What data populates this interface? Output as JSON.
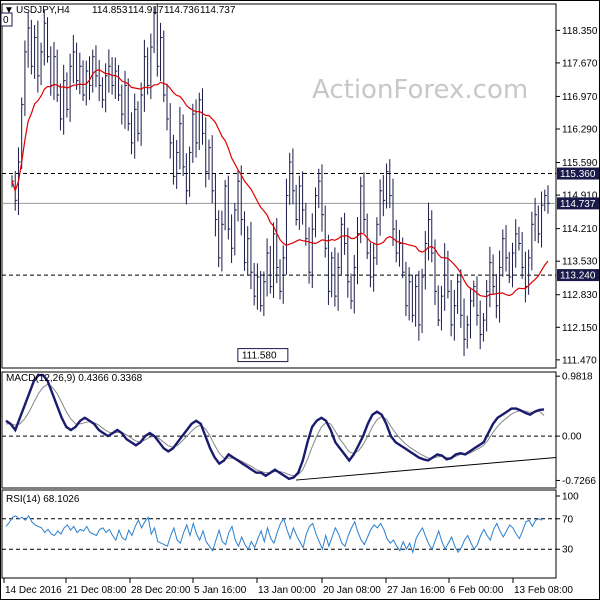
{
  "header": {
    "collapse_glyph": "▼",
    "symbol": "USDJPY,H4",
    "open": "114.853",
    "high": "114.917",
    "low": "114.736",
    "close": "114.737",
    "left_edge_tag": "0"
  },
  "watermark": "ActionForex.com",
  "colors": {
    "price": "#1a1a4a",
    "ma": "#e00000",
    "macd_line": "#1a1a6e",
    "signal_line": "#888888",
    "rsi": "#2a7fd0",
    "badge_bg": "#1a1a4a",
    "badge_text": "#ffffff",
    "grid_dash": "#000000"
  },
  "chart_data": [
    {
      "type": "candlestick",
      "panel": "price",
      "ylim": [
        111.3,
        118.9
      ],
      "y_ticks": [
        "118.350",
        "117.670",
        "116.970",
        "116.290",
        "115.590",
        "114.910",
        "114.210",
        "113.530",
        "112.830",
        "112.150",
        "111.470"
      ],
      "x_ticks": [
        "14 Dec 2016",
        "21 Dec 08:00",
        "28 Dec 20:00",
        "5 Jan 16:00",
        "13 Jan 00:00",
        "20 Jan 08:00",
        "27 Jan 16:00",
        "6 Feb 00:00",
        "13 Feb 08:00"
      ],
      "hlines": [
        {
          "value": 115.36,
          "label": "115.360",
          "dashed": true
        },
        {
          "value": 113.24,
          "label": "113.240",
          "dashed": true
        },
        {
          "value": 114.737,
          "label": "114.737",
          "dashed": false,
          "solid_gray": true
        }
      ],
      "low_annotation": {
        "value": 111.58,
        "label": "111.580",
        "x_index": 78
      },
      "closes": [
        115.2,
        114.8,
        115.6,
        116.8,
        117.9,
        118.4,
        117.6,
        118.2,
        117.4,
        117.9,
        118.5,
        117.8,
        117.2,
        117.8,
        117.0,
        116.5,
        117.3,
        116.7,
        117.6,
        117.9,
        117.3,
        117.6,
        117.0,
        117.5,
        117.2,
        117.8,
        117.4,
        117.2,
        116.9,
        117.4,
        117.6,
        117.2,
        117.5,
        117.0,
        116.6,
        117.2,
        116.4,
        116.0,
        116.7,
        116.2,
        117.0,
        117.8,
        117.2,
        118.0,
        118.7,
        117.6,
        118.2,
        117.0,
        116.5,
        116.0,
        115.3,
        115.8,
        116.4,
        115.5,
        115.0,
        115.8,
        116.6,
        116.0,
        116.9,
        116.2,
        115.4,
        115.9,
        115.0,
        114.4,
        113.6,
        114.3,
        115.1,
        114.2,
        113.8,
        114.6,
        115.2,
        114.4,
        113.5,
        114.0,
        113.3,
        112.8,
        113.2,
        112.6,
        113.1,
        113.7,
        113.0,
        114.1,
        113.4,
        112.9,
        113.6,
        114.9,
        115.6,
        115.0,
        114.4,
        115.1,
        114.6,
        114.0,
        113.3,
        114.2,
        114.9,
        115.2,
        114.5,
        113.8,
        112.9,
        113.6,
        112.8,
        113.4,
        114.3,
        113.9,
        113.1,
        112.7,
        113.4,
        114.1,
        115.1,
        114.4,
        113.7,
        113.2,
        113.6,
        114.3,
        115.0,
        114.8,
        115.4,
        114.9,
        114.2,
        113.7,
        113.9,
        113.3,
        112.6,
        113.1,
        112.4,
        113.0,
        112.2,
        113.2,
        113.9,
        114.4,
        113.7,
        112.9,
        112.3,
        112.8,
        113.6,
        112.9,
        112.2,
        112.6,
        113.1,
        112.4,
        111.9,
        112.2,
        112.7,
        113.0,
        112.4,
        112.0,
        112.3,
        112.9,
        113.5,
        113.0,
        112.6,
        113.4,
        114.0,
        113.6,
        113.2,
        113.7,
        114.1,
        113.9,
        113.4,
        113.0,
        113.6,
        114.3,
        114.5,
        114.1,
        114.7,
        114.9,
        114.737
      ],
      "ma_period": 24
    },
    {
      "type": "line",
      "panel": "macd",
      "title": "MACD(12,26,9) 0.4366 0.3368",
      "title_parts": {
        "name": "MACD(12,26,9)",
        "macd": "0.4366",
        "signal": "0.3368"
      },
      "ylim": [
        -0.85,
        1.05
      ],
      "y_ticks": [
        "0.9818",
        "0.00",
        "-0.7266"
      ],
      "y_tick_values": [
        0.9818,
        0.0,
        -0.7266
      ],
      "zero_dashed": true,
      "macd": [
        0.25,
        0.2,
        0.1,
        0.3,
        0.5,
        0.7,
        0.9,
        1.0,
        1.0,
        0.9,
        0.7,
        0.5,
        0.3,
        0.15,
        0.1,
        0.15,
        0.25,
        0.3,
        0.25,
        0.2,
        0.1,
        0.05,
        0.0,
        0.05,
        0.1,
        0.05,
        -0.05,
        -0.1,
        -0.15,
        -0.1,
        0.0,
        0.05,
        0.0,
        -0.1,
        -0.2,
        -0.25,
        -0.2,
        -0.1,
        0.0,
        0.1,
        0.2,
        0.25,
        0.2,
        0.0,
        -0.2,
        -0.35,
        -0.45,
        -0.4,
        -0.3,
        -0.35,
        -0.4,
        -0.45,
        -0.5,
        -0.55,
        -0.6,
        -0.6,
        -0.65,
        -0.6,
        -0.55,
        -0.6,
        -0.65,
        -0.7,
        -0.68,
        -0.6,
        -0.4,
        -0.1,
        0.15,
        0.25,
        0.3,
        0.25,
        0.1,
        -0.1,
        -0.2,
        -0.3,
        -0.4,
        -0.3,
        -0.15,
        0.0,
        0.2,
        0.35,
        0.4,
        0.35,
        0.2,
        0.0,
        -0.1,
        -0.15,
        -0.2,
        -0.25,
        -0.3,
        -0.35,
        -0.38,
        -0.4,
        -0.35,
        -0.3,
        -0.32,
        -0.38,
        -0.36,
        -0.3,
        -0.28,
        -0.3,
        -0.25,
        -0.2,
        -0.15,
        -0.1,
        0.05,
        0.2,
        0.3,
        0.35,
        0.4,
        0.45,
        0.45,
        0.42,
        0.38,
        0.35,
        0.4,
        0.43,
        0.4366
      ],
      "signal": [
        0.2,
        0.2,
        0.18,
        0.2,
        0.28,
        0.4,
        0.55,
        0.7,
        0.8,
        0.85,
        0.8,
        0.7,
        0.55,
        0.4,
        0.28,
        0.2,
        0.2,
        0.22,
        0.24,
        0.22,
        0.18,
        0.12,
        0.07,
        0.05,
        0.06,
        0.06,
        0.02,
        -0.03,
        -0.08,
        -0.1,
        -0.06,
        -0.02,
        0.0,
        -0.04,
        -0.1,
        -0.16,
        -0.18,
        -0.15,
        -0.08,
        0.0,
        0.08,
        0.15,
        0.18,
        0.12,
        0.0,
        -0.15,
        -0.28,
        -0.36,
        -0.36,
        -0.36,
        -0.38,
        -0.42,
        -0.46,
        -0.5,
        -0.55,
        -0.58,
        -0.6,
        -0.6,
        -0.58,
        -0.58,
        -0.6,
        -0.63,
        -0.65,
        -0.63,
        -0.55,
        -0.38,
        -0.18,
        0.0,
        0.15,
        0.22,
        0.2,
        0.08,
        -0.05,
        -0.15,
        -0.26,
        -0.28,
        -0.24,
        -0.14,
        0.0,
        0.15,
        0.27,
        0.32,
        0.28,
        0.16,
        0.05,
        -0.04,
        -0.12,
        -0.18,
        -0.23,
        -0.28,
        -0.32,
        -0.36,
        -0.36,
        -0.34,
        -0.33,
        -0.35,
        -0.36,
        -0.33,
        -0.3,
        -0.3,
        -0.28,
        -0.24,
        -0.2,
        -0.15,
        -0.06,
        0.06,
        0.16,
        0.24,
        0.3,
        0.36,
        0.4,
        0.42,
        0.41,
        0.39,
        0.39,
        0.41,
        0.3368
      ],
      "trendline": [
        [
          97,
          -0.72
        ],
        [
          191,
          -0.35
        ]
      ]
    },
    {
      "type": "line",
      "panel": "rsi",
      "title": "RSI(14) 68.1026",
      "title_parts": {
        "name": "RSI(14)",
        "value": "68.1026"
      },
      "ylim": [
        0,
        100
      ],
      "y_ticks": [
        "100",
        "70",
        "30",
        "0"
      ],
      "y_tick_values": [
        100,
        70,
        30,
        0
      ],
      "dashed_levels": [
        70,
        30
      ],
      "values": [
        60,
        65,
        72,
        74,
        70,
        72,
        68,
        74,
        66,
        62,
        60,
        58,
        52,
        56,
        50,
        48,
        54,
        50,
        58,
        62,
        55,
        60,
        52,
        56,
        54,
        60,
        52,
        50,
        48,
        56,
        58,
        52,
        56,
        48,
        42,
        55,
        45,
        42,
        55,
        48,
        60,
        68,
        58,
        66,
        72,
        50,
        58,
        40,
        38,
        36,
        34,
        48,
        58,
        42,
        38,
        52,
        62,
        48,
        64,
        50,
        42,
        54,
        40,
        34,
        28,
        42,
        55,
        40,
        36,
        52,
        60,
        42,
        34,
        46,
        36,
        30,
        40,
        32,
        44,
        54,
        40,
        58,
        44,
        38,
        52,
        64,
        70,
        56,
        44,
        58,
        48,
        40,
        32,
        50,
        60,
        64,
        50,
        40,
        30,
        48,
        34,
        46,
        58,
        50,
        38,
        34,
        48,
        58,
        66,
        52,
        42,
        36,
        46,
        56,
        62,
        58,
        64,
        56,
        44,
        38,
        42,
        34,
        28,
        40,
        30,
        38,
        26,
        44,
        52,
        58,
        46,
        36,
        30,
        42,
        54,
        40,
        30,
        38,
        46,
        34,
        26,
        32,
        42,
        48,
        38,
        30,
        36,
        48,
        56,
        48,
        42,
        56,
        64,
        54,
        46,
        54,
        62,
        58,
        50,
        44,
        54,
        66,
        68,
        60,
        68,
        70,
        68.1026
      ]
    }
  ]
}
